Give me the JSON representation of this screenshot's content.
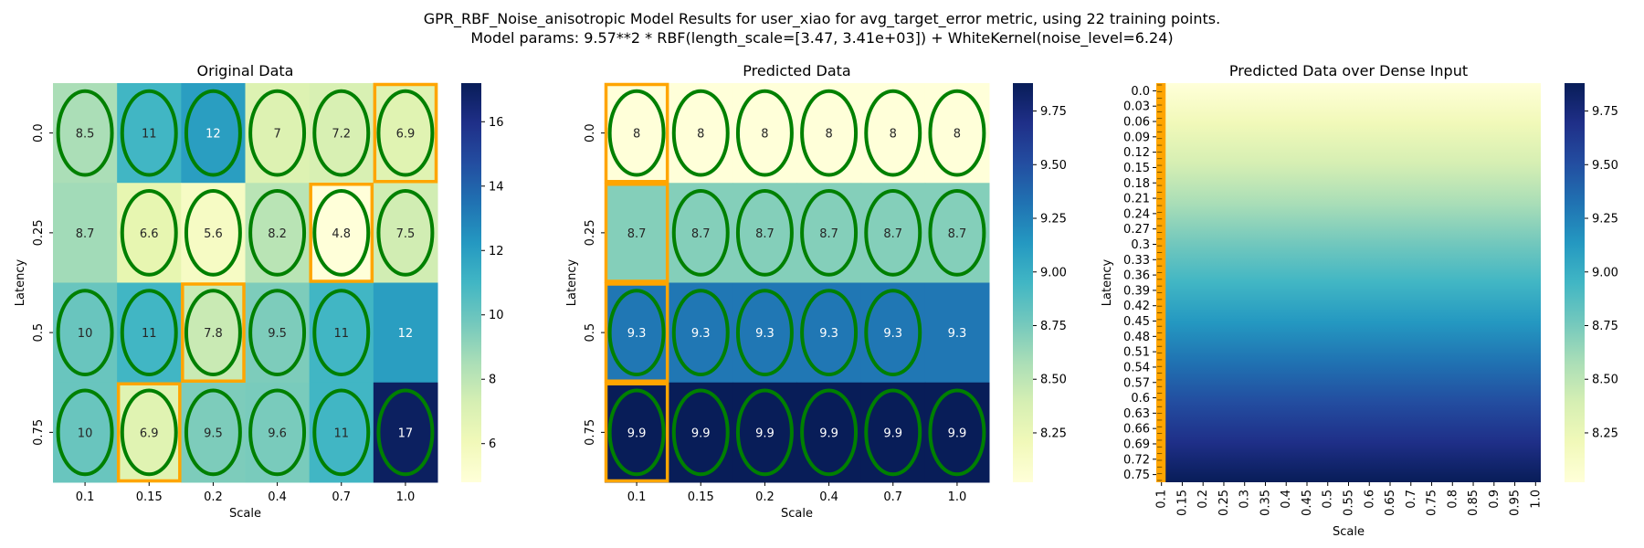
{
  "figure": {
    "title_line1": "GPR_RBF_Noise_anisotropic Model Results for user_xiao for avg_target_error metric, using 22 training points.",
    "title_line2": "Model params: 9.57**2 * RBF(length_scale=[3.47, 3.41e+03]) + WhiteKernel(noise_level=6.24)"
  },
  "colormap": "YlGnBu",
  "colors": {
    "ellipse": "#008000",
    "highlight": "#FFA500"
  },
  "chart_data": [
    {
      "type": "heatmap",
      "title": "Original Data",
      "xlabel": "Scale",
      "ylabel": "Latency",
      "x_ticks": [
        "0.1",
        "0.15",
        "0.2",
        "0.4",
        "0.7",
        "1.0"
      ],
      "y_ticks": [
        "0.0",
        "0.25",
        "0.5",
        "0.75"
      ],
      "values": [
        [
          8.5,
          11,
          12,
          7,
          7.2,
          6.9
        ],
        [
          8.7,
          6.6,
          5.6,
          8.2,
          4.8,
          7.5
        ],
        [
          10,
          11,
          7.8,
          9.5,
          11,
          12
        ],
        [
          10,
          6.9,
          9.5,
          9.6,
          11,
          17
        ]
      ],
      "labels": [
        [
          "8.5",
          "11",
          "12",
          "7",
          "7.2",
          "6.9"
        ],
        [
          "8.7",
          "6.6",
          "5.6",
          "8.2",
          "4.8",
          "7.5"
        ],
        [
          "10",
          "11",
          "7.8",
          "9.5",
          "11",
          "12"
        ],
        [
          "10",
          "6.9",
          "9.5",
          "9.6",
          "11",
          "17"
        ]
      ],
      "vmin": 4.8,
      "vmax": 17.2,
      "colorbar_ticks": [
        "6",
        "8",
        "10",
        "12",
        "14",
        "16"
      ],
      "colorbar_tick_values": [
        6,
        8,
        10,
        12,
        14,
        16
      ],
      "ellipses": [
        [
          1,
          1,
          1,
          1,
          1,
          1
        ],
        [
          0,
          1,
          1,
          1,
          1,
          1
        ],
        [
          1,
          1,
          1,
          1,
          1,
          0
        ],
        [
          1,
          1,
          1,
          1,
          1,
          1
        ]
      ],
      "highlighted_cells": [
        [
          0,
          5
        ],
        [
          1,
          4
        ],
        [
          2,
          2
        ],
        [
          3,
          1
        ]
      ]
    },
    {
      "type": "heatmap",
      "title": "Predicted Data",
      "xlabel": "Scale",
      "ylabel": "Latency",
      "x_ticks": [
        "0.1",
        "0.15",
        "0.2",
        "0.4",
        "0.7",
        "1.0"
      ],
      "y_ticks": [
        "0.0",
        "0.25",
        "0.5",
        "0.75"
      ],
      "values": [
        [
          8,
          8,
          8,
          8,
          8,
          8
        ],
        [
          8.7,
          8.7,
          8.7,
          8.7,
          8.7,
          8.7
        ],
        [
          9.3,
          9.3,
          9.3,
          9.3,
          9.3,
          9.3
        ],
        [
          9.9,
          9.9,
          9.9,
          9.9,
          9.9,
          9.9
        ]
      ],
      "labels": [
        [
          "8",
          "8",
          "8",
          "8",
          "8",
          "8"
        ],
        [
          "8.7",
          "8.7",
          "8.7",
          "8.7",
          "8.7",
          "8.7"
        ],
        [
          "9.3",
          "9.3",
          "9.3",
          "9.3",
          "9.3",
          "9.3"
        ],
        [
          "9.9",
          "9.9",
          "9.9",
          "9.9",
          "9.9",
          "9.9"
        ]
      ],
      "vmin": 8.02,
      "vmax": 9.88,
      "colorbar_ticks": [
        "8.25",
        "8.50",
        "8.75",
        "9.00",
        "9.25",
        "9.50",
        "9.75"
      ],
      "colorbar_tick_values": [
        8.25,
        8.5,
        8.75,
        9.0,
        9.25,
        9.5,
        9.75
      ],
      "ellipses": [
        [
          1,
          1,
          1,
          1,
          1,
          1
        ],
        [
          0,
          1,
          1,
          1,
          1,
          1
        ],
        [
          1,
          1,
          1,
          1,
          1,
          0
        ],
        [
          1,
          1,
          1,
          1,
          1,
          1
        ]
      ],
      "highlighted_cells": [
        [
          0,
          0
        ],
        [
          1,
          0
        ],
        [
          2,
          0
        ],
        [
          3,
          0
        ]
      ]
    },
    {
      "type": "heatmap",
      "title": "Predicted Data over Dense Input",
      "xlabel": "Scale",
      "ylabel": "Latency",
      "x_ticks": [
        "0.1",
        "0.15",
        "0.2",
        "0.25",
        "0.3",
        "0.35",
        "0.4",
        "0.45",
        "0.5",
        "0.55",
        "0.6",
        "0.65",
        "0.7",
        "0.75",
        "0.8",
        "0.85",
        "0.9",
        "0.95",
        "1.0"
      ],
      "y_ticks": [
        "0.0",
        "0.03",
        "0.06",
        "0.09",
        "0.12",
        "0.15",
        "0.18",
        "0.21",
        "0.24",
        "0.27",
        "0.3",
        "0.33",
        "0.36",
        "0.39",
        "0.42",
        "0.45",
        "0.48",
        "0.51",
        "0.54",
        "0.57",
        "0.6",
        "0.63",
        "0.66",
        "0.69",
        "0.72",
        "0.75"
      ],
      "y_range": [
        0.0,
        0.75
      ],
      "value_range": [
        8.02,
        9.88
      ],
      "vmin": 8.02,
      "vmax": 9.88,
      "colorbar_ticks": [
        "8.25",
        "8.50",
        "8.75",
        "9.00",
        "9.25",
        "9.50",
        "9.75"
      ],
      "colorbar_tick_values": [
        8.25,
        8.5,
        8.75,
        9.0,
        9.25,
        9.5,
        9.75
      ],
      "highlighted_column": "0.1"
    }
  ]
}
